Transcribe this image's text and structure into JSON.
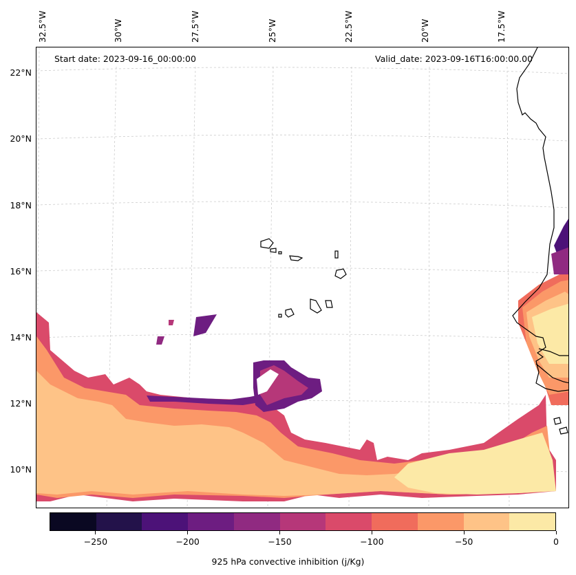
{
  "map": {
    "start_date": "Start date: 2023-09-16_00:00:00",
    "valid_date": "Valid_date: 2023-09-16T16:00:00.00",
    "lon_labels": [
      "32.5°W",
      "30°W",
      "27.5°W",
      "25°W",
      "22.5°W",
      "20°W",
      "17.5°W"
    ],
    "lat_labels": [
      "22°N",
      "20°N",
      "18°N",
      "16°N",
      "14°N",
      "12°N",
      "10°N"
    ],
    "gridlines": "dashed"
  },
  "colorbar": {
    "title": "925 hPa convective inhibition (j/Kg)",
    "levels": [
      -275,
      -250,
      -225,
      -200,
      -175,
      -150,
      -125,
      -100,
      -75,
      -50,
      -25,
      0
    ],
    "tick_labels": [
      "−250",
      "−200",
      "−150",
      "−100",
      "−50",
      "0"
    ],
    "tick_values": [
      -250,
      -200,
      -150,
      -100,
      -50,
      0
    ],
    "colors": [
      "#0a0822",
      "#23124a",
      "#4c1278",
      "#6d1d81",
      "#902a81",
      "#b63779",
      "#da4a6a",
      "#f06c5c",
      "#fb9868",
      "#fec387",
      "#fce9a6"
    ]
  }
}
